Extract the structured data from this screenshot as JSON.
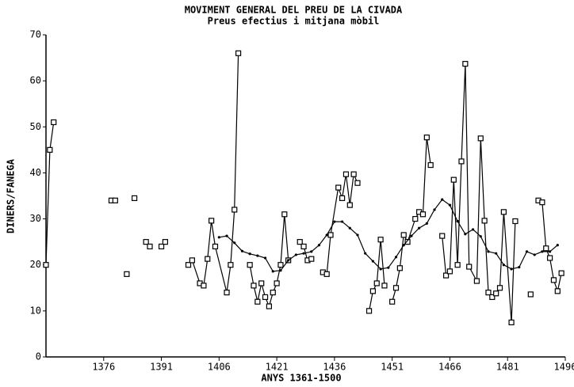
{
  "chart_data": {
    "type": "line",
    "title": "MOVIMENT GENERAL DEL PREU DE LA CIVADA",
    "subtitle": "Preus efectius i mitjana mòbil",
    "xlabel": "ANYS 1361-1500",
    "ylabel": "DINERS/FANEGA",
    "xlim": [
      1361,
      1496
    ],
    "xticks": [
      1376,
      1391,
      1406,
      1421,
      1436,
      1451,
      1466,
      1481,
      1496
    ],
    "ylim": [
      0,
      70
    ],
    "yticks": [
      0,
      10,
      20,
      30,
      40,
      50,
      60,
      70
    ],
    "grid": false,
    "series": [
      {
        "color": "#000000",
        "marker": "square",
        "x": [
          1361,
          1362,
          1363,
          null,
          1378,
          1379,
          null,
          1382,
          null,
          1384,
          null,
          1387,
          1388,
          null,
          1391,
          1392,
          null,
          1398,
          1399,
          1401,
          1402,
          1403,
          1404,
          1405,
          1408,
          1409,
          1410,
          1411,
          null,
          1414,
          1415,
          1416,
          1417,
          1418,
          1419,
          1420,
          1421,
          1422,
          1423,
          1424,
          null,
          1427,
          1428,
          1429,
          1430,
          null,
          1433,
          1434,
          1435,
          1437,
          1438,
          1439,
          1440,
          1441,
          1442,
          null,
          1445,
          1446,
          1447,
          1448,
          1449,
          null,
          1451,
          1452,
          1453,
          1454,
          1455,
          1457,
          1458,
          1459,
          1460,
          1461,
          null,
          1464,
          1465,
          1466,
          1467,
          1468,
          1469,
          1470,
          1471,
          1473,
          1474,
          1475,
          1476,
          1477,
          1478,
          1479,
          1480,
          1482,
          1483,
          null,
          1487,
          null,
          1489,
          1490,
          1491,
          1492,
          1493,
          1494,
          1495
        ],
        "values": [
          20,
          45,
          51,
          null,
          34,
          34,
          null,
          18,
          null,
          34.5,
          null,
          25,
          24,
          null,
          24,
          25,
          null,
          20,
          21,
          16,
          15.5,
          21.3,
          29.6,
          24,
          14,
          20,
          32,
          66,
          null,
          20,
          15.5,
          12,
          16,
          13,
          11,
          14,
          16,
          20,
          31,
          21,
          null,
          25,
          24,
          21,
          21.3,
          null,
          18.4,
          18,
          26.5,
          36.8,
          34.5,
          39.7,
          33,
          39.7,
          37.8,
          null,
          10,
          14.3,
          16,
          25.5,
          15.5,
          null,
          12,
          15,
          19.3,
          26.5,
          25,
          30,
          31.5,
          31,
          47.7,
          41.7,
          null,
          26.3,
          17.7,
          18.6,
          38.5,
          20,
          42.5,
          63.7,
          19.6,
          16.5,
          47.5,
          29.6,
          14,
          13,
          13.8,
          15,
          31.5,
          7.5,
          29.5,
          null,
          13.6,
          null,
          34,
          33.6,
          23.6,
          21.5,
          16.7,
          14.3,
          18.2
        ]
      },
      {
        "color": "#000000",
        "marker": "dot",
        "x": [
          1406,
          1408,
          1410,
          1412,
          1414,
          1416,
          1418,
          1420,
          1422,
          1424,
          1426,
          1428,
          1430,
          1432,
          1434,
          1436,
          1438,
          1440,
          1442,
          1444,
          1446,
          1448,
          1450,
          1452,
          1454,
          1456,
          1458,
          1460,
          1462,
          1464,
          1466,
          1468,
          1470,
          1472,
          1474,
          1476,
          1478,
          1480,
          1482,
          1484,
          1486,
          1488,
          1490,
          1492,
          1494
        ],
        "values": [
          26,
          26.3,
          24.8,
          23,
          22.4,
          22,
          21.5,
          18.6,
          18.8,
          21,
          22.2,
          22.5,
          22.9,
          24.3,
          26.5,
          29.4,
          29.4,
          28,
          26.5,
          22.5,
          20.8,
          19.1,
          19.4,
          21.7,
          24.3,
          26.3,
          28,
          29,
          32,
          34.2,
          33,
          29.5,
          26.7,
          27.7,
          26.2,
          22.9,
          22.5,
          20,
          19.1,
          19.5,
          22.9,
          22.2,
          22.9,
          22.9,
          24.3
        ]
      }
    ]
  }
}
